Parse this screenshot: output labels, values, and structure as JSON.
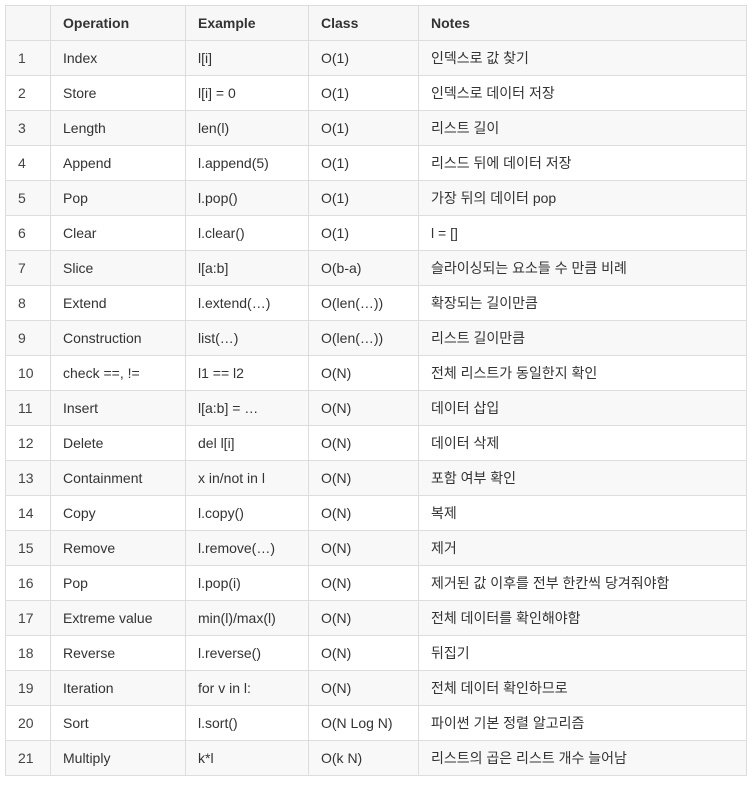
{
  "table": {
    "headers": [
      "",
      "Operation",
      "Example",
      "Class",
      "Notes"
    ],
    "rows": [
      [
        "1",
        "Index",
        "l[i]",
        "O(1)",
        "인덱스로 값 찾기"
      ],
      [
        "2",
        "Store",
        "l[i] = 0",
        "O(1)",
        "인덱스로 데이터 저장"
      ],
      [
        "3",
        "Length",
        "len(l)",
        "O(1)",
        "리스트 길이"
      ],
      [
        "4",
        "Append",
        "l.append(5)",
        "O(1)",
        "리스드 뒤에 데이터 저장"
      ],
      [
        "5",
        "Pop",
        "l.pop()",
        "O(1)",
        "가장 뒤의 데이터 pop"
      ],
      [
        "6",
        "Clear",
        "l.clear()",
        "O(1)",
        "l = []"
      ],
      [
        "7",
        "Slice",
        "l[a:b]",
        "O(b-a)",
        "슬라이싱되는 요소들 수 만큼 비례"
      ],
      [
        "8",
        "Extend",
        "l.extend(…)",
        "O(len(…))",
        "확장되는 길이만큼"
      ],
      [
        "9",
        "Construction",
        "list(…)",
        "O(len(…))",
        "리스트 길이만큼"
      ],
      [
        "10",
        "check ==, !=",
        "l1 == l2",
        "O(N)",
        "전체 리스트가 동일한지 확인"
      ],
      [
        "11",
        "Insert",
        "l[a:b] = …",
        "O(N)",
        "데이터 삽입"
      ],
      [
        "12",
        "Delete",
        "del l[i]",
        "O(N)",
        "데이터 삭제"
      ],
      [
        "13",
        "Containment",
        "x in/not in l",
        "O(N)",
        "포함 여부 확인"
      ],
      [
        "14",
        "Copy",
        "l.copy()",
        "O(N)",
        "복제"
      ],
      [
        "15",
        "Remove",
        "l.remove(…)",
        "O(N)",
        "제거"
      ],
      [
        "16",
        "Pop",
        "l.pop(i)",
        "O(N)",
        "제거된 값 이후를 전부 한칸씩 당겨줘야함"
      ],
      [
        "17",
        "Extreme value",
        "min(l)/max(l)",
        "O(N)",
        "전체 데이터를 확인해야함"
      ],
      [
        "18",
        "Reverse",
        "l.reverse()",
        "O(N)",
        "뒤집기"
      ],
      [
        "19",
        "Iteration",
        "for v in l:",
        "O(N)",
        "전체 데이터 확인하므로"
      ],
      [
        "20",
        "Sort",
        "l.sort()",
        "O(N Log N)",
        "파이썬 기본 정렬 알고리즘"
      ],
      [
        "21",
        "Multiply",
        "k*l",
        "O(k N)",
        "리스트의 곱은 리스트 개수 늘어남"
      ]
    ]
  }
}
